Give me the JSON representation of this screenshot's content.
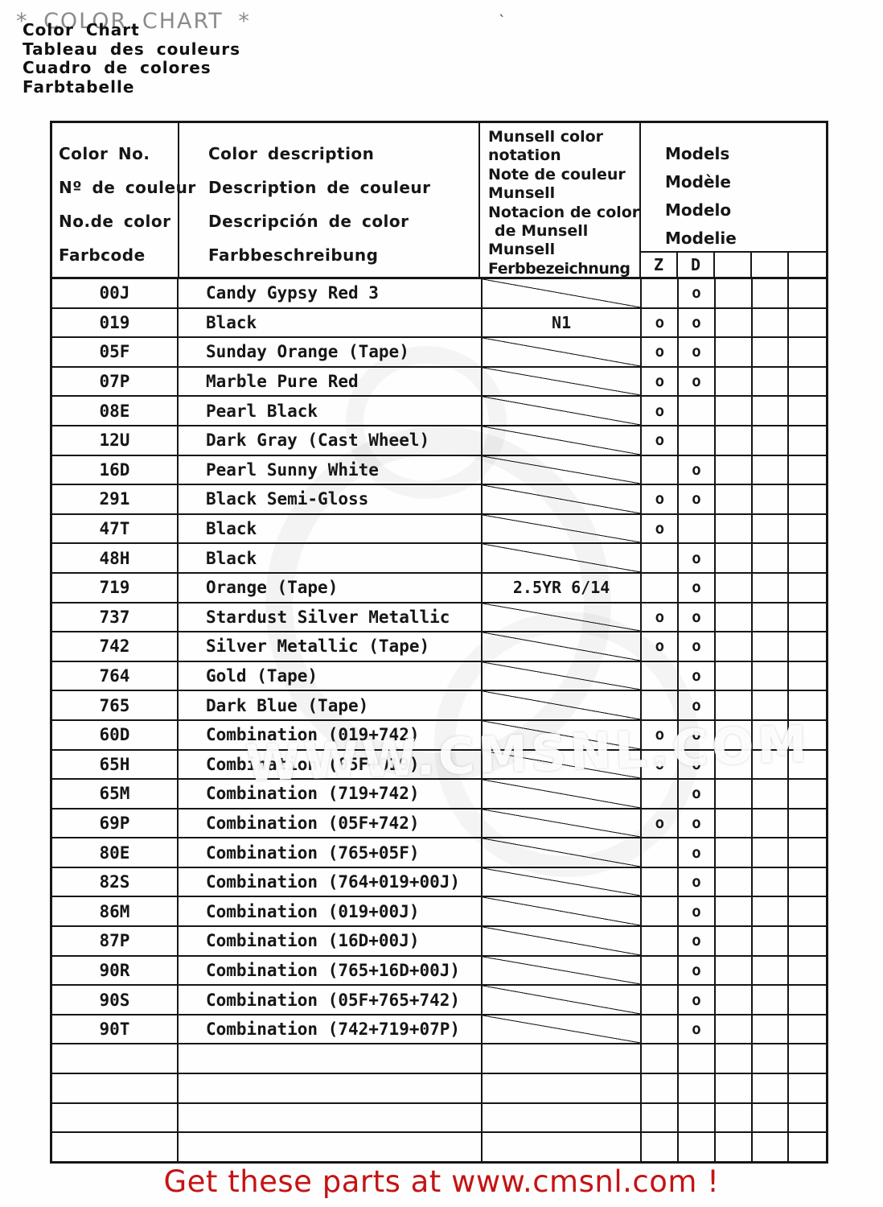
{
  "page": {
    "ghost_title": "* COLOR CHART *",
    "titles": [
      "Color Chart",
      "Tableau des couleurs",
      "Cuadro de colores",
      "Farbtabelle"
    ],
    "stray_mark": "`",
    "watermark": "WWW.CMSNL.COM",
    "footer": "Get these parts at www.cmsnl.com !",
    "colors": {
      "footer_red": "#c41414",
      "line_black": "#161616",
      "ghost_gray": "#8b8b8b"
    }
  },
  "table": {
    "headers": {
      "color_no": [
        "Color No.",
        "Nº de couleur",
        "No.de color",
        "Farbcode"
      ],
      "description": [
        "Color description",
        "Description de couleur",
        "Descripción de color",
        "Farbbeschreibung"
      ],
      "munsell": [
        "Munsell color",
        "notation",
        "Note de couleur",
        "Munsell",
        "Notacion de color",
        "de Munsell",
        "Munsell",
        "Ferbbezeichnung"
      ],
      "models": [
        "Models",
        "Modèle",
        "Modelo",
        "Modelie"
      ],
      "model_columns": [
        "Z",
        "D",
        "",
        "",
        ""
      ]
    },
    "rows": [
      {
        "code": "00J",
        "description": "Candy Gypsy Red 3",
        "munsell": "",
        "z": "",
        "d": "o"
      },
      {
        "code": "019",
        "description": "Black",
        "munsell": "N1",
        "z": "o",
        "d": "o"
      },
      {
        "code": "05F",
        "description": "Sunday Orange (Tape)",
        "munsell": "",
        "z": "o",
        "d": "o"
      },
      {
        "code": "07P",
        "description": "Marble Pure Red",
        "munsell": "",
        "z": "o",
        "d": "o"
      },
      {
        "code": "08E",
        "description": "Pearl Black",
        "munsell": "",
        "z": "o",
        "d": ""
      },
      {
        "code": "12U",
        "description": "Dark Gray (Cast Wheel)",
        "munsell": "",
        "z": "o",
        "d": ""
      },
      {
        "code": "16D",
        "description": "Pearl Sunny White",
        "munsell": "",
        "z": "",
        "d": "o"
      },
      {
        "code": "291",
        "description": "Black Semi-Gloss",
        "munsell": "",
        "z": "o",
        "d": "o"
      },
      {
        "code": "47T",
        "description": "Black",
        "munsell": "",
        "z": "o",
        "d": ""
      },
      {
        "code": "48H",
        "description": "Black",
        "munsell": "",
        "z": "",
        "d": "o"
      },
      {
        "code": "719",
        "description": "Orange (Tape)",
        "munsell": "2.5YR 6/14",
        "z": "",
        "d": "o"
      },
      {
        "code": "737",
        "description": "Stardust Silver Metallic",
        "munsell": "",
        "z": "o",
        "d": "o"
      },
      {
        "code": "742",
        "description": "Silver Metallic (Tape)",
        "munsell": "",
        "z": "o",
        "d": "o"
      },
      {
        "code": "764",
        "description": "Gold (Tape)",
        "munsell": "",
        "z": "",
        "d": "o"
      },
      {
        "code": "765",
        "description": "Dark Blue (Tape)",
        "munsell": "",
        "z": "",
        "d": "o"
      },
      {
        "code": "60D",
        "description": "Combination (019+742)",
        "munsell": "",
        "z": "o",
        "d": "o"
      },
      {
        "code": "65H",
        "description": "Combination (05F+019)",
        "munsell": "",
        "z": "o",
        "d": "o"
      },
      {
        "code": "65M",
        "description": "Combination (719+742)",
        "munsell": "",
        "z": "",
        "d": "o"
      },
      {
        "code": "69P",
        "description": "Combination (05F+742)",
        "munsell": "",
        "z": "o",
        "d": "o"
      },
      {
        "code": "80E",
        "description": "Combination (765+05F)",
        "munsell": "",
        "z": "",
        "d": "o"
      },
      {
        "code": "82S",
        "description": "Combination (764+019+00J)",
        "munsell": "",
        "z": "",
        "d": "o"
      },
      {
        "code": "86M",
        "description": "Combination (019+00J)",
        "munsell": "",
        "z": "",
        "d": "o"
      },
      {
        "code": "87P",
        "description": "Combination (16D+00J)",
        "munsell": "",
        "z": "",
        "d": "o"
      },
      {
        "code": "90R",
        "description": "Combination (765+16D+00J)",
        "munsell": "",
        "z": "",
        "d": "o"
      },
      {
        "code": "90S",
        "description": "Combination (05F+765+742)",
        "munsell": "",
        "z": "",
        "d": "o"
      },
      {
        "code": "90T",
        "description": "Combination (742+719+07P)",
        "munsell": "",
        "z": "",
        "d": "o"
      },
      {
        "code": "",
        "description": "",
        "munsell": "",
        "z": "",
        "d": ""
      },
      {
        "code": "",
        "description": "",
        "munsell": "",
        "z": "",
        "d": ""
      },
      {
        "code": "",
        "description": "",
        "munsell": "",
        "z": "",
        "d": ""
      },
      {
        "code": "",
        "description": "",
        "munsell": "",
        "z": "",
        "d": ""
      }
    ]
  }
}
